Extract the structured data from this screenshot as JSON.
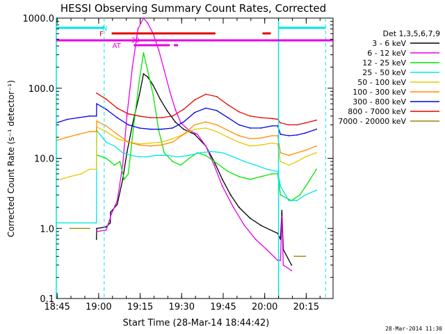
{
  "chart_data": {
    "type": "line",
    "title": "HESSI Observing Summary Count Rates, Corrected",
    "xlabel": "Start Time (28-Mar-14 18:44:42)",
    "ylabel": "Corrected Count Rate (s⁻¹ detector⁻¹)",
    "ylim": [
      0.1,
      1000
    ],
    "yscale": "log",
    "xlim_minutes": [
      0,
      100
    ],
    "x_ticks": [
      {
        "m": 0.3,
        "label": "18:45"
      },
      {
        "m": 15.3,
        "label": "19:00"
      },
      {
        "m": 30.3,
        "label": "19:15"
      },
      {
        "m": 45.3,
        "label": "19:30"
      },
      {
        "m": 60.3,
        "label": "19:45"
      },
      {
        "m": 75.3,
        "label": "20:00"
      },
      {
        "m": 90.3,
        "label": "20:15"
      }
    ],
    "y_ticks": [
      {
        "v": 0.1,
        "label": "0.1"
      },
      {
        "v": 1,
        "label": "1.0"
      },
      {
        "v": 10,
        "label": "10.0"
      },
      {
        "v": 100,
        "label": "100.0"
      },
      {
        "v": 1000,
        "label": "1000.0"
      }
    ],
    "legend_title": "Det 1,3,5,6,7,9",
    "legend_position": "right",
    "series": [
      {
        "name": "3 - 6 keV",
        "color": "#000000",
        "x": [
          0,
          14.5,
          14.6,
          18,
          19.5,
          19.6,
          22,
          24,
          25.5,
          27.5,
          30,
          31.5,
          33,
          35,
          37.5,
          40,
          43,
          46,
          50,
          54,
          57,
          60,
          63,
          66,
          70,
          74,
          80,
          81,
          81.5,
          82,
          85,
          85.1
        ],
        "y": [
          null,
          0.7,
          1.0,
          1.05,
          1.2,
          1.7,
          2.2,
          5,
          12,
          30,
          80,
          160,
          145,
          110,
          70,
          48,
          33,
          26,
          22,
          15,
          9,
          5,
          3,
          2,
          1.4,
          1.1,
          0.85,
          0.7,
          1.8,
          0.5,
          0.3,
          null
        ]
      },
      {
        "name": "6 - 12 keV",
        "color": "#e600e6",
        "x": [
          14.5,
          14.6,
          18,
          19.5,
          19.6,
          22,
          24,
          25.5,
          27.5,
          29.5,
          31.5,
          33,
          35,
          37,
          39,
          41,
          43,
          45,
          48,
          51,
          54,
          57,
          60,
          64,
          68,
          72,
          76,
          80,
          81,
          81.5,
          82,
          85,
          85.1
        ],
        "y": [
          null,
          0.9,
          0.95,
          1.4,
          1.5,
          2.5,
          8,
          40,
          200,
          700,
          1000,
          850,
          600,
          350,
          180,
          90,
          50,
          32,
          25,
          22,
          15,
          8,
          4,
          2,
          1.1,
          0.7,
          0.5,
          0.35,
          0.35,
          1.5,
          0.3,
          0.25,
          null
        ]
      },
      {
        "name": "12 - 25 keV",
        "color": "#00e600",
        "x": [
          14.5,
          15,
          18,
          19.5,
          21,
          23,
          24.5,
          26,
          28,
          30,
          31.5,
          33,
          35,
          37,
          39,
          42,
          45,
          48,
          51,
          54,
          58,
          62,
          66,
          70,
          74,
          78,
          80,
          81,
          85,
          88,
          91,
          94
        ],
        "y": [
          null,
          11,
          10,
          9,
          8,
          9,
          5,
          6,
          30,
          130,
          320,
          180,
          80,
          25,
          12,
          9,
          8,
          10,
          12,
          11,
          8.5,
          6.5,
          5.5,
          5,
          5.5,
          6,
          6,
          3,
          2.5,
          3,
          4.5,
          7
        ]
      },
      {
        "name": "25 - 50 keV",
        "color": "#00e6e6",
        "x": [
          0,
          14.5,
          14.6,
          18,
          21,
          24,
          27,
          30,
          33,
          36,
          40,
          44,
          48,
          52,
          56,
          60,
          64,
          68,
          72,
          76,
          80,
          81,
          84,
          87,
          90,
          94
        ],
        "y": [
          1.2,
          1.2,
          25,
          17,
          15,
          12,
          11,
          10.5,
          10.5,
          11,
          11,
          10.5,
          11,
          12,
          12.5,
          12,
          10.5,
          9,
          8,
          7,
          6.5,
          4,
          2.5,
          2.5,
          3,
          3.5
        ]
      },
      {
        "name": "50 - 100 keV",
        "color": "#e6c800",
        "x": [
          1.5,
          5,
          9,
          12,
          14.5,
          14.6,
          18,
          22,
          26,
          30,
          34,
          38,
          42,
          46,
          50,
          54,
          58,
          62,
          66,
          70,
          74,
          78,
          80,
          81,
          84,
          87,
          90,
          94
        ],
        "y": [
          5,
          5.5,
          6,
          7,
          7,
          28,
          24,
          19,
          17,
          16,
          16.5,
          17,
          19,
          22,
          26,
          27,
          24,
          20,
          17,
          15,
          15.5,
          16.5,
          16,
          9,
          8,
          9,
          10.5,
          12
        ]
      },
      {
        "name": "100 - 300 keV",
        "color": "#ff8c00",
        "x": [
          0,
          4,
          8,
          12,
          14.5,
          14.6,
          18,
          22,
          26,
          30,
          34,
          38,
          42,
          46,
          50,
          54,
          58,
          62,
          66,
          70,
          74,
          78,
          80,
          81,
          84,
          87,
          90,
          94
        ],
        "y": [
          18,
          20,
          22,
          24,
          24,
          34,
          29,
          22,
          17,
          15.5,
          15,
          15.5,
          17,
          22,
          30,
          33,
          30,
          25,
          21,
          19,
          19.5,
          21,
          21,
          12,
          11,
          12,
          13,
          15
        ]
      },
      {
        "name": "300 - 800 keV",
        "color": "#0000e6",
        "x": [
          0,
          4,
          8,
          12,
          14.5,
          14.6,
          18,
          22,
          26,
          30,
          34,
          38,
          42,
          46,
          50,
          54,
          58,
          62,
          66,
          70,
          74,
          78,
          80,
          81,
          84,
          87,
          90,
          94
        ],
        "y": [
          32,
          36,
          38,
          40,
          40,
          60,
          50,
          38,
          30,
          27,
          26,
          26,
          27,
          33,
          45,
          52,
          48,
          38,
          30,
          27,
          27,
          29,
          29,
          22,
          21,
          21.5,
          23,
          26
        ]
      },
      {
        "name": "800 - 7000 keV",
        "color": "#e60000",
        "x": [
          14.5,
          14.6,
          18,
          22,
          26,
          30,
          34,
          38,
          42,
          46,
          50,
          54,
          58,
          62,
          66,
          70,
          74,
          78,
          80,
          81,
          84,
          87,
          90,
          94
        ],
        "y": [
          null,
          85,
          70,
          52,
          43,
          40,
          38,
          38,
          40,
          50,
          68,
          82,
          76,
          58,
          46,
          40,
          38,
          37,
          36,
          32,
          30,
          30,
          32,
          35
        ]
      },
      {
        "name": "7000 - 20000 keV",
        "color": "#a08200",
        "x": [
          5,
          12,
          14.5,
          80,
          86,
          90
        ],
        "y": [
          1.0,
          1.0,
          null,
          null,
          0.4,
          0.4
        ]
      }
    ],
    "bar_markers": [
      {
        "label": "N",
        "color": "#00e6e6"
      },
      {
        "label": "F",
        "color": "#e60000"
      },
      {
        "label": "AT",
        "color": "#e600e6"
      },
      {
        "label": "30",
        "color": "#e600e6"
      }
    ],
    "footer_date": "28-Mar-2014 11:30"
  }
}
